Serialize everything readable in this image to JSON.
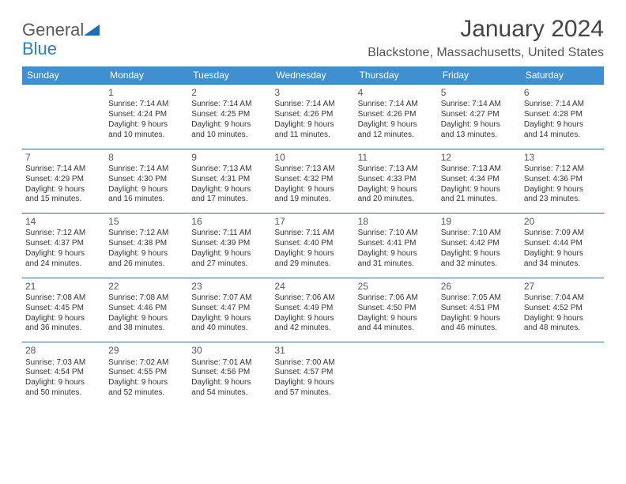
{
  "logo": {
    "text1": "General",
    "text2": "Blue"
  },
  "title": "January 2024",
  "location": "Blackstone, Massachusetts, United States",
  "colors": {
    "header_bg": "#3f8fd1",
    "header_text": "#ffffff",
    "rule": "#2b6fa8",
    "title": "#444444",
    "body": "#333333",
    "logo_gray": "#5a5a5a",
    "logo_blue": "#2a7fbf"
  },
  "columns": [
    "Sunday",
    "Monday",
    "Tuesday",
    "Wednesday",
    "Thursday",
    "Friday",
    "Saturday"
  ],
  "weeks": [
    [
      null,
      {
        "n": "1",
        "sr": "Sunrise: 7:14 AM",
        "ss": "Sunset: 4:24 PM",
        "d1": "Daylight: 9 hours",
        "d2": "and 10 minutes."
      },
      {
        "n": "2",
        "sr": "Sunrise: 7:14 AM",
        "ss": "Sunset: 4:25 PM",
        "d1": "Daylight: 9 hours",
        "d2": "and 10 minutes."
      },
      {
        "n": "3",
        "sr": "Sunrise: 7:14 AM",
        "ss": "Sunset: 4:26 PM",
        "d1": "Daylight: 9 hours",
        "d2": "and 11 minutes."
      },
      {
        "n": "4",
        "sr": "Sunrise: 7:14 AM",
        "ss": "Sunset: 4:26 PM",
        "d1": "Daylight: 9 hours",
        "d2": "and 12 minutes."
      },
      {
        "n": "5",
        "sr": "Sunrise: 7:14 AM",
        "ss": "Sunset: 4:27 PM",
        "d1": "Daylight: 9 hours",
        "d2": "and 13 minutes."
      },
      {
        "n": "6",
        "sr": "Sunrise: 7:14 AM",
        "ss": "Sunset: 4:28 PM",
        "d1": "Daylight: 9 hours",
        "d2": "and 14 minutes."
      }
    ],
    [
      {
        "n": "7",
        "sr": "Sunrise: 7:14 AM",
        "ss": "Sunset: 4:29 PM",
        "d1": "Daylight: 9 hours",
        "d2": "and 15 minutes."
      },
      {
        "n": "8",
        "sr": "Sunrise: 7:14 AM",
        "ss": "Sunset: 4:30 PM",
        "d1": "Daylight: 9 hours",
        "d2": "and 16 minutes."
      },
      {
        "n": "9",
        "sr": "Sunrise: 7:13 AM",
        "ss": "Sunset: 4:31 PM",
        "d1": "Daylight: 9 hours",
        "d2": "and 17 minutes."
      },
      {
        "n": "10",
        "sr": "Sunrise: 7:13 AM",
        "ss": "Sunset: 4:32 PM",
        "d1": "Daylight: 9 hours",
        "d2": "and 19 minutes."
      },
      {
        "n": "11",
        "sr": "Sunrise: 7:13 AM",
        "ss": "Sunset: 4:33 PM",
        "d1": "Daylight: 9 hours",
        "d2": "and 20 minutes."
      },
      {
        "n": "12",
        "sr": "Sunrise: 7:13 AM",
        "ss": "Sunset: 4:34 PM",
        "d1": "Daylight: 9 hours",
        "d2": "and 21 minutes."
      },
      {
        "n": "13",
        "sr": "Sunrise: 7:12 AM",
        "ss": "Sunset: 4:36 PM",
        "d1": "Daylight: 9 hours",
        "d2": "and 23 minutes."
      }
    ],
    [
      {
        "n": "14",
        "sr": "Sunrise: 7:12 AM",
        "ss": "Sunset: 4:37 PM",
        "d1": "Daylight: 9 hours",
        "d2": "and 24 minutes."
      },
      {
        "n": "15",
        "sr": "Sunrise: 7:12 AM",
        "ss": "Sunset: 4:38 PM",
        "d1": "Daylight: 9 hours",
        "d2": "and 26 minutes."
      },
      {
        "n": "16",
        "sr": "Sunrise: 7:11 AM",
        "ss": "Sunset: 4:39 PM",
        "d1": "Daylight: 9 hours",
        "d2": "and 27 minutes."
      },
      {
        "n": "17",
        "sr": "Sunrise: 7:11 AM",
        "ss": "Sunset: 4:40 PM",
        "d1": "Daylight: 9 hours",
        "d2": "and 29 minutes."
      },
      {
        "n": "18",
        "sr": "Sunrise: 7:10 AM",
        "ss": "Sunset: 4:41 PM",
        "d1": "Daylight: 9 hours",
        "d2": "and 31 minutes."
      },
      {
        "n": "19",
        "sr": "Sunrise: 7:10 AM",
        "ss": "Sunset: 4:42 PM",
        "d1": "Daylight: 9 hours",
        "d2": "and 32 minutes."
      },
      {
        "n": "20",
        "sr": "Sunrise: 7:09 AM",
        "ss": "Sunset: 4:44 PM",
        "d1": "Daylight: 9 hours",
        "d2": "and 34 minutes."
      }
    ],
    [
      {
        "n": "21",
        "sr": "Sunrise: 7:08 AM",
        "ss": "Sunset: 4:45 PM",
        "d1": "Daylight: 9 hours",
        "d2": "and 36 minutes."
      },
      {
        "n": "22",
        "sr": "Sunrise: 7:08 AM",
        "ss": "Sunset: 4:46 PM",
        "d1": "Daylight: 9 hours",
        "d2": "and 38 minutes."
      },
      {
        "n": "23",
        "sr": "Sunrise: 7:07 AM",
        "ss": "Sunset: 4:47 PM",
        "d1": "Daylight: 9 hours",
        "d2": "and 40 minutes."
      },
      {
        "n": "24",
        "sr": "Sunrise: 7:06 AM",
        "ss": "Sunset: 4:49 PM",
        "d1": "Daylight: 9 hours",
        "d2": "and 42 minutes."
      },
      {
        "n": "25",
        "sr": "Sunrise: 7:06 AM",
        "ss": "Sunset: 4:50 PM",
        "d1": "Daylight: 9 hours",
        "d2": "and 44 minutes."
      },
      {
        "n": "26",
        "sr": "Sunrise: 7:05 AM",
        "ss": "Sunset: 4:51 PM",
        "d1": "Daylight: 9 hours",
        "d2": "and 46 minutes."
      },
      {
        "n": "27",
        "sr": "Sunrise: 7:04 AM",
        "ss": "Sunset: 4:52 PM",
        "d1": "Daylight: 9 hours",
        "d2": "and 48 minutes."
      }
    ],
    [
      {
        "n": "28",
        "sr": "Sunrise: 7:03 AM",
        "ss": "Sunset: 4:54 PM",
        "d1": "Daylight: 9 hours",
        "d2": "and 50 minutes."
      },
      {
        "n": "29",
        "sr": "Sunrise: 7:02 AM",
        "ss": "Sunset: 4:55 PM",
        "d1": "Daylight: 9 hours",
        "d2": "and 52 minutes."
      },
      {
        "n": "30",
        "sr": "Sunrise: 7:01 AM",
        "ss": "Sunset: 4:56 PM",
        "d1": "Daylight: 9 hours",
        "d2": "and 54 minutes."
      },
      {
        "n": "31",
        "sr": "Sunrise: 7:00 AM",
        "ss": "Sunset: 4:57 PM",
        "d1": "Daylight: 9 hours",
        "d2": "and 57 minutes."
      },
      null,
      null,
      null
    ]
  ]
}
